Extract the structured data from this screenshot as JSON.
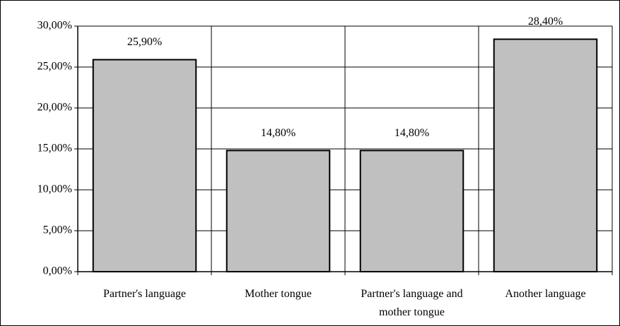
{
  "chart_data": {
    "type": "bar",
    "categories": [
      "Partner's language",
      "Mother tongue",
      "Partner's language and mother tongue",
      "Another language"
    ],
    "values": [
      25.9,
      14.8,
      14.8,
      28.4
    ],
    "value_labels": [
      "25,90%",
      "14,80%",
      "14,80%",
      "28,40%"
    ],
    "color": "#c0c0c0",
    "ylim": [
      0,
      30
    ],
    "yticks": [
      {
        "value": 0,
        "label": "0,00%"
      },
      {
        "value": 5,
        "label": "5,00%"
      },
      {
        "value": 10,
        "label": "10,00%"
      },
      {
        "value": 15,
        "label": "15,00%"
      },
      {
        "value": 20,
        "label": "20,00%"
      },
      {
        "value": 25,
        "label": "25,00%"
      },
      {
        "value": 30,
        "label": "30,00%"
      }
    ],
    "grid": true
  }
}
